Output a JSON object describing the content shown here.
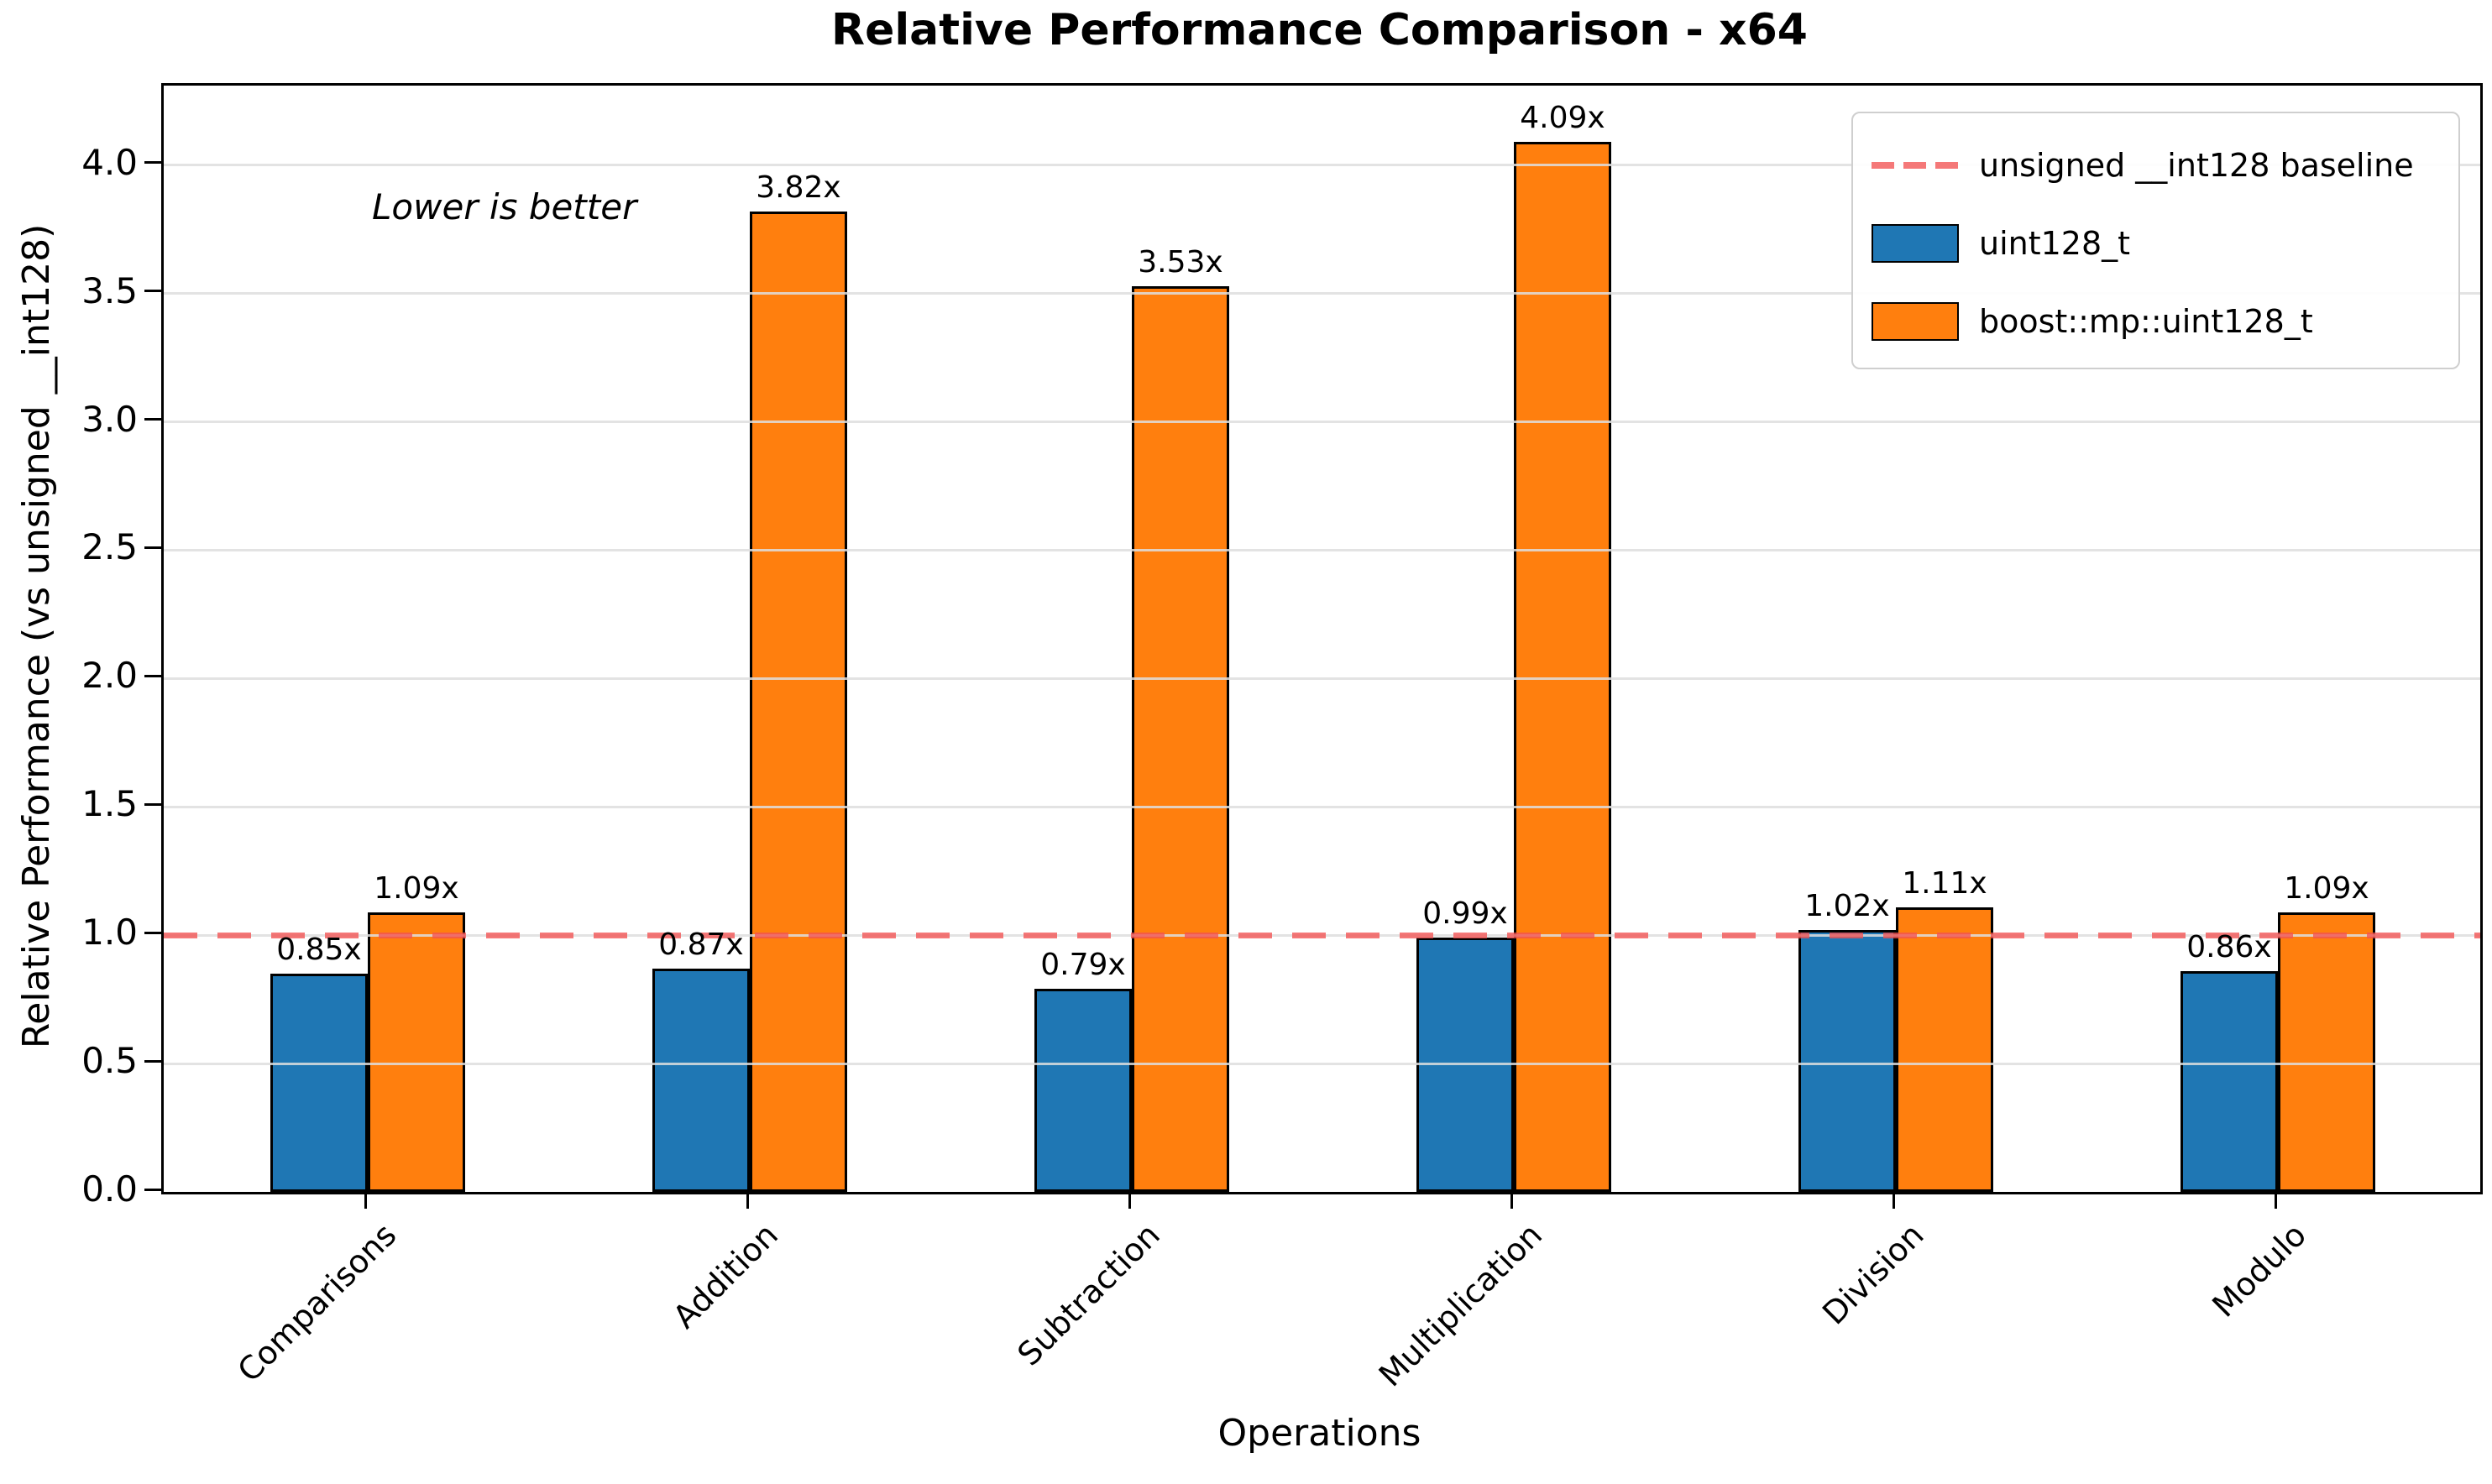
{
  "title": "Relative Performance Comparison - x64",
  "annotation": "Lower is better",
  "chart_data": {
    "type": "bar",
    "title": "Relative Performance Comparison - x64",
    "xlabel": "Operations",
    "ylabel": "Relative Performance (vs unsigned __int128)",
    "categories": [
      "Comparisons",
      "Addition",
      "Subtraction",
      "Multiplication",
      "Division",
      "Modulo"
    ],
    "series": [
      {
        "name": "uint128_t",
        "color": "#1f77b4",
        "values": [
          0.85,
          0.87,
          0.79,
          0.99,
          1.02,
          0.86
        ],
        "labels": [
          "0.85x",
          "0.87x",
          "0.79x",
          "0.99x",
          "1.02x",
          "0.86x"
        ]
      },
      {
        "name": "boost::mp::uint128_t",
        "color": "#ff7f0e",
        "values": [
          1.09,
          3.82,
          3.53,
          4.09,
          1.11,
          1.09
        ],
        "labels": [
          "1.09x",
          "3.82x",
          "3.53x",
          "4.09x",
          "1.11x",
          "1.09x"
        ]
      }
    ],
    "baseline": {
      "value": 1.0,
      "label": "unsigned __int128 baseline",
      "color": "#f25252"
    },
    "ylim": [
      0,
      4.31
    ],
    "yticks": [
      "0.0",
      "0.5",
      "1.0",
      "1.5",
      "2.0",
      "2.5",
      "3.0",
      "3.5",
      "4.0"
    ],
    "grid": true,
    "grid_color": "#e5e5e5",
    "legend_position": "upper right",
    "annotation": "Lower is better"
  }
}
